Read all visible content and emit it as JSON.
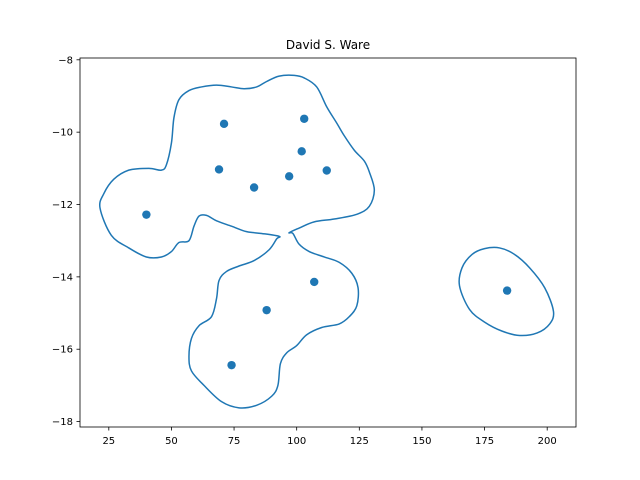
{
  "chart_data": {
    "type": "scatter",
    "title": "David S. Ware",
    "xlabel": "",
    "ylabel": "",
    "xlim": [
      13.5,
      211.5
    ],
    "ylim": [
      -18.15,
      -7.95
    ],
    "xticks": [
      25,
      50,
      75,
      100,
      125,
      150,
      175,
      200
    ],
    "yticks": [
      -8,
      -10,
      -12,
      -14,
      -16,
      -18
    ],
    "grid": false,
    "color": "#1f77b4",
    "points": [
      {
        "x": 40,
        "y": -12.28
      },
      {
        "x": 69,
        "y": -11.03
      },
      {
        "x": 71,
        "y": -9.77
      },
      {
        "x": 83,
        "y": -11.53
      },
      {
        "x": 97,
        "y": -11.22
      },
      {
        "x": 102,
        "y": -10.53
      },
      {
        "x": 103,
        "y": -9.63
      },
      {
        "x": 112,
        "y": -11.06
      },
      {
        "x": 107,
        "y": -14.14
      },
      {
        "x": 88,
        "y": -14.92
      },
      {
        "x": 74,
        "y": -16.44
      },
      {
        "x": 184,
        "y": -14.38
      }
    ],
    "contours": [
      [
        [
          21.5,
          -12.1
        ],
        [
          23,
          -11.7
        ],
        [
          27,
          -11.3
        ],
        [
          33,
          -11.05
        ],
        [
          41,
          -11.0
        ],
        [
          46,
          -11.05
        ],
        [
          48,
          -10.9
        ],
        [
          50,
          -10.3
        ],
        [
          51,
          -9.6
        ],
        [
          53,
          -9.1
        ],
        [
          57,
          -8.85
        ],
        [
          62,
          -8.75
        ],
        [
          68,
          -8.7
        ],
        [
          74,
          -8.75
        ],
        [
          79,
          -8.8
        ],
        [
          84,
          -8.75
        ],
        [
          88,
          -8.6
        ],
        [
          93,
          -8.45
        ],
        [
          99,
          -8.43
        ],
        [
          103,
          -8.5
        ],
        [
          108,
          -8.75
        ],
        [
          112,
          -9.3
        ],
        [
          116,
          -9.75
        ],
        [
          119,
          -10.1
        ],
        [
          123,
          -10.5
        ],
        [
          127,
          -10.8
        ],
        [
          129,
          -11.1
        ],
        [
          131,
          -11.6
        ],
        [
          129,
          -12.05
        ],
        [
          124,
          -12.27
        ],
        [
          115,
          -12.4
        ],
        [
          107,
          -12.48
        ],
        [
          101,
          -12.65
        ],
        [
          97,
          -12.78
        ],
        [
          98.5,
          -12.8
        ],
        [
          101,
          -13.1
        ],
        [
          105,
          -13.3
        ],
        [
          111,
          -13.45
        ],
        [
          117,
          -13.6
        ],
        [
          122,
          -13.9
        ],
        [
          124.5,
          -14.3
        ],
        [
          124,
          -14.8
        ],
        [
          121,
          -15.1
        ],
        [
          117,
          -15.3
        ],
        [
          110,
          -15.4
        ],
        [
          104,
          -15.6
        ],
        [
          100,
          -15.9
        ],
        [
          96,
          -16.1
        ],
        [
          93.5,
          -16.4
        ],
        [
          92.5,
          -17.0
        ],
        [
          90,
          -17.3
        ],
        [
          84,
          -17.55
        ],
        [
          77,
          -17.62
        ],
        [
          70,
          -17.45
        ],
        [
          63,
          -17.0
        ],
        [
          58,
          -16.6
        ],
        [
          57,
          -16.2
        ],
        [
          58,
          -15.7
        ],
        [
          61,
          -15.35
        ],
        [
          66,
          -15.1
        ],
        [
          68,
          -14.6
        ],
        [
          69,
          -14.1
        ],
        [
          72,
          -13.85
        ],
        [
          77,
          -13.7
        ],
        [
          83,
          -13.55
        ],
        [
          89,
          -13.25
        ],
        [
          92,
          -12.95
        ],
        [
          93,
          -12.88
        ],
        [
          86,
          -12.8
        ],
        [
          80,
          -12.75
        ],
        [
          74,
          -12.6
        ],
        [
          68,
          -12.45
        ],
        [
          64,
          -12.3
        ],
        [
          61,
          -12.32
        ],
        [
          59,
          -12.6
        ],
        [
          57,
          -13.0
        ],
        [
          53,
          -13.05
        ],
        [
          50,
          -13.3
        ],
        [
          46,
          -13.45
        ],
        [
          40,
          -13.45
        ],
        [
          33,
          -13.2
        ],
        [
          26,
          -12.85
        ]
      ],
      [
        [
          165,
          -14.25
        ],
        [
          166,
          -13.75
        ],
        [
          170,
          -13.38
        ],
        [
          175,
          -13.22
        ],
        [
          181,
          -13.2
        ],
        [
          187,
          -13.38
        ],
        [
          193,
          -13.75
        ],
        [
          199,
          -14.3
        ],
        [
          202.5,
          -14.95
        ],
        [
          201,
          -15.3
        ],
        [
          196,
          -15.55
        ],
        [
          189,
          -15.62
        ],
        [
          182,
          -15.5
        ],
        [
          175,
          -15.25
        ],
        [
          169,
          -14.9
        ]
      ]
    ]
  }
}
